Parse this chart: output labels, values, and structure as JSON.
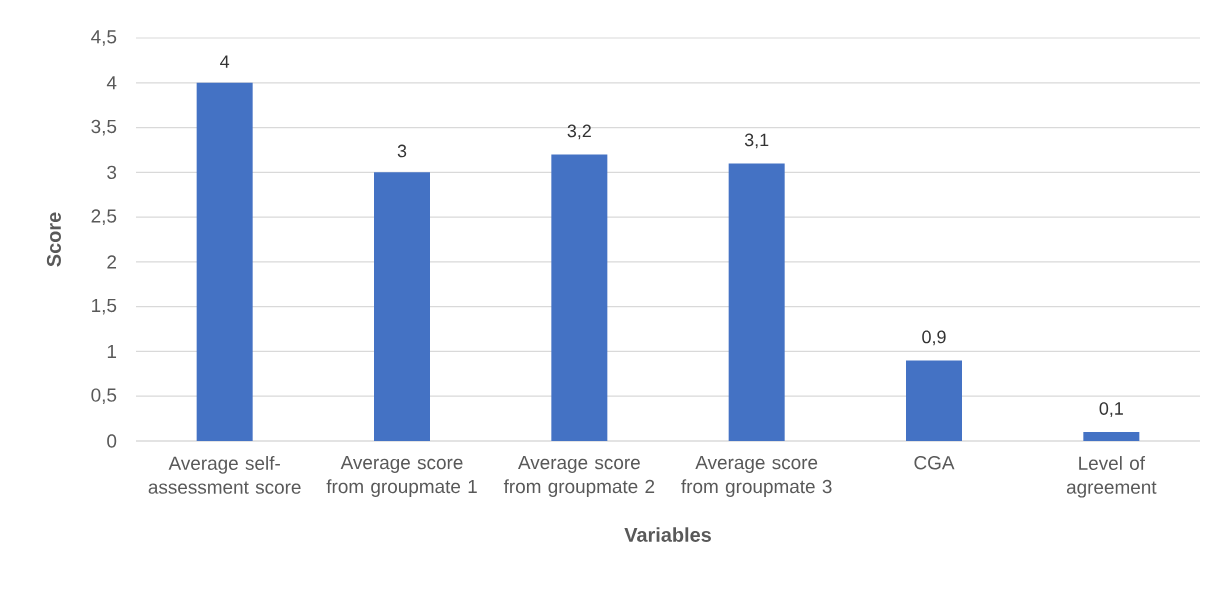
{
  "chart_data": {
    "type": "bar",
    "xlabel": "Variables",
    "ylabel": "Score",
    "categories": [
      "Average self-assessment score",
      "Average score from groupmate 1",
      "Average score from groupmate 2",
      "Average score from groupmate 3",
      "CGA",
      "Level of agreement"
    ],
    "values": [
      4,
      3,
      3.2,
      3.1,
      0.9,
      0.1
    ],
    "value_labels": [
      "4",
      "3",
      "3,2",
      "3,1",
      "0,9",
      "0,1"
    ],
    "color": "#4472c4",
    "ylim": [
      0,
      4.5
    ],
    "yticks": [
      0,
      {
        "value": 0.5,
        "label": "0,5"
      },
      1,
      {
        "value": 1.5,
        "label": "1,5"
      },
      2,
      {
        "value": 2.5,
        "label": "2,5"
      },
      3,
      {
        "value": 3.5,
        "label": "3,5"
      },
      4,
      {
        "value": 4.5,
        "label": "4,5"
      }
    ],
    "grid": "y"
  }
}
